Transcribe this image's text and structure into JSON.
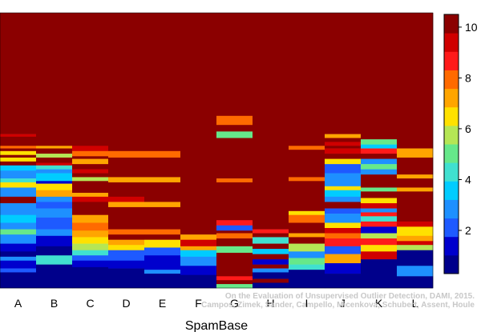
{
  "chart_data": {
    "type": "heatmap",
    "xlabel": "SpamBase",
    "categories": [
      "A",
      "B",
      "C",
      "D",
      "E",
      "F",
      "G",
      "H",
      "I",
      "J",
      "K",
      "L"
    ],
    "colorbar": {
      "min": 0.3,
      "max": 10.5,
      "ticks": [
        2,
        4,
        6,
        8,
        10
      ],
      "palette": [
        "#00008B",
        "#0000CD",
        "#1E5AFF",
        "#1E90FF",
        "#00CCFF",
        "#40E0D0",
        "#66E88A",
        "#B5E655",
        "#FFE100",
        "#FFA500",
        "#FF6A00",
        "#FF1A1A",
        "#D00000",
        "#8B0000"
      ]
    },
    "columns": [
      [
        [
          0,
          9.3,
          10.5
        ],
        [
          9.3,
          9.5,
          9.2
        ],
        [
          9.5,
          10.2,
          10.5
        ],
        [
          10.2,
          10.4,
          8
        ],
        [
          10.4,
          10.6,
          10.5
        ],
        [
          10.6,
          10.9,
          6.3
        ],
        [
          10.9,
          11.1,
          10.5
        ],
        [
          11.1,
          11.4,
          6.7
        ],
        [
          11.4,
          11.7,
          10.5
        ],
        [
          11.7,
          12.1,
          3.7
        ],
        [
          12.1,
          12.7,
          2.5
        ],
        [
          12.7,
          13.0,
          4.5
        ],
        [
          13.0,
          13.4,
          6.8
        ],
        [
          13.4,
          14.1,
          2.5
        ],
        [
          14.1,
          14.6,
          10.5
        ],
        [
          14.6,
          15.5,
          2.6
        ],
        [
          15.5,
          16.1,
          3.3
        ],
        [
          16.1,
          16.6,
          2.6
        ],
        [
          16.6,
          17.0,
          5
        ],
        [
          17.0,
          17.7,
          3.2
        ],
        [
          17.7,
          18.3,
          1.4
        ],
        [
          18.3,
          18.7,
          0.9
        ],
        [
          18.7,
          19.0,
          2.7
        ],
        [
          19.0,
          19.6,
          1.3
        ],
        [
          19.6,
          19.9,
          2.3
        ],
        [
          19.9,
          21.1,
          0.7
        ]
      ],
      [
        [
          0,
          10.2,
          10.5
        ],
        [
          10.2,
          10.4,
          7
        ],
        [
          10.4,
          10.8,
          10.5
        ],
        [
          10.8,
          11.1,
          6.1
        ],
        [
          11.1,
          11.5,
          10.5
        ],
        [
          11.5,
          11.7,
          9.3
        ],
        [
          11.7,
          12.0,
          4
        ],
        [
          12.0,
          12.3,
          3.2
        ],
        [
          12.3,
          12.9,
          3.5
        ],
        [
          12.9,
          13.1,
          1.7
        ],
        [
          13.1,
          13.6,
          6.5
        ],
        [
          13.6,
          14.1,
          7
        ],
        [
          14.1,
          14.5,
          3
        ],
        [
          14.5,
          15.0,
          2.4
        ],
        [
          15.0,
          15.7,
          3.1
        ],
        [
          15.7,
          16.6,
          2.2
        ],
        [
          16.6,
          17.1,
          3
        ],
        [
          17.1,
          17.9,
          1.2
        ],
        [
          17.9,
          18.6,
          0.8
        ],
        [
          18.6,
          19.3,
          4.6
        ],
        [
          19.3,
          20.1,
          0.6
        ],
        [
          20.1,
          21.1,
          0.6
        ]
      ],
      [
        [
          0,
          10.2,
          10.5
        ],
        [
          10.2,
          10.6,
          9.4
        ],
        [
          10.6,
          11.0,
          8.1
        ],
        [
          11.0,
          11.2,
          10.5
        ],
        [
          11.2,
          11.6,
          7.5
        ],
        [
          11.6,
          12.0,
          10.5
        ],
        [
          12.0,
          12.3,
          9.4
        ],
        [
          12.3,
          12.6,
          10.5
        ],
        [
          12.6,
          12.9,
          6
        ],
        [
          12.9,
          13.8,
          10.5
        ],
        [
          13.8,
          14.1,
          6.9
        ],
        [
          14.1,
          14.5,
          9.4
        ],
        [
          14.5,
          15.5,
          10.5
        ],
        [
          15.5,
          16.1,
          7.1
        ],
        [
          16.1,
          16.7,
          8.2
        ],
        [
          16.7,
          17.2,
          7.5
        ],
        [
          17.2,
          17.7,
          6.5
        ],
        [
          17.7,
          18.2,
          5.5
        ],
        [
          18.2,
          18.6,
          4.3
        ],
        [
          18.6,
          19.0,
          2.4
        ],
        [
          19.0,
          19.5,
          1.3
        ],
        [
          19.5,
          21.1,
          0.6
        ]
      ],
      [
        [
          0,
          10.6,
          10.5
        ],
        [
          10.6,
          11.1,
          8.2
        ],
        [
          11.1,
          12.6,
          10.5
        ],
        [
          12.6,
          13.0,
          7
        ],
        [
          13.0,
          14.1,
          10.5
        ],
        [
          14.1,
          14.5,
          9.3
        ],
        [
          14.5,
          14.9,
          7.2
        ],
        [
          14.9,
          16.6,
          10.5
        ],
        [
          16.6,
          17.0,
          8
        ],
        [
          17.0,
          17.4,
          10.5
        ],
        [
          17.4,
          17.8,
          7
        ],
        [
          17.8,
          18.2,
          6.2
        ],
        [
          18.2,
          19.0,
          2
        ],
        [
          19.0,
          19.6,
          1.3
        ],
        [
          19.6,
          21.1,
          0.6
        ]
      ],
      [
        [
          0,
          10.6,
          10.5
        ],
        [
          10.6,
          11.1,
          8.2
        ],
        [
          11.1,
          12.6,
          10.5
        ],
        [
          12.6,
          13.0,
          7
        ],
        [
          13.0,
          14.5,
          10.5
        ],
        [
          14.5,
          14.9,
          7.2
        ],
        [
          14.9,
          16.6,
          10.5
        ],
        [
          16.6,
          17.0,
          8
        ],
        [
          17.0,
          17.4,
          10.5
        ],
        [
          17.4,
          18.0,
          6.2
        ],
        [
          18.0,
          18.6,
          2.1
        ],
        [
          18.6,
          19.0,
          1.3
        ],
        [
          19.0,
          19.7,
          1.6
        ],
        [
          19.7,
          20.0,
          2.5
        ],
        [
          20.0,
          21.1,
          0.6
        ]
      ],
      [
        [
          0,
          17.0,
          10.5
        ],
        [
          17.0,
          17.4,
          7.2
        ],
        [
          17.4,
          17.9,
          9.3
        ],
        [
          17.9,
          18.2,
          7.1
        ],
        [
          18.2,
          18.7,
          3.5
        ],
        [
          18.7,
          19.4,
          2.6
        ],
        [
          19.4,
          20.1,
          1.4
        ],
        [
          20.1,
          21.1,
          0.6
        ]
      ],
      [
        [
          0,
          7.9,
          10.5
        ],
        [
          7.9,
          8.6,
          8.3
        ],
        [
          8.6,
          9.1,
          10.5
        ],
        [
          9.1,
          9.6,
          5
        ],
        [
          9.6,
          12.7,
          10.5
        ],
        [
          12.7,
          13.0,
          8.3
        ],
        [
          13.0,
          15.9,
          10.5
        ],
        [
          15.9,
          16.3,
          8.6
        ],
        [
          16.3,
          16.7,
          1.8
        ],
        [
          16.7,
          16.9,
          10.5
        ],
        [
          16.9,
          17.3,
          7.9
        ],
        [
          17.3,
          17.9,
          10.5
        ],
        [
          17.9,
          18.4,
          4.8
        ],
        [
          18.4,
          20.2,
          10.5
        ],
        [
          20.2,
          20.5,
          8.5
        ],
        [
          20.5,
          20.8,
          10.5
        ],
        [
          20.8,
          21.1,
          4.8
        ]
      ],
      [
        [
          0,
          16.6,
          10.5
        ],
        [
          16.6,
          16.9,
          8.6
        ],
        [
          16.9,
          17.2,
          10.5
        ],
        [
          17.2,
          17.7,
          4.4
        ],
        [
          17.7,
          18.1,
          10.5
        ],
        [
          18.1,
          18.5,
          3.3
        ],
        [
          18.5,
          18.9,
          10.5
        ],
        [
          18.9,
          19.3,
          1.1
        ],
        [
          19.3,
          19.6,
          10.5
        ],
        [
          19.6,
          19.9,
          2.6
        ],
        [
          19.9,
          20.4,
          0.6
        ],
        [
          20.4,
          20.7,
          10.5
        ],
        [
          20.7,
          21.1,
          0.6
        ]
      ],
      [
        [
          0,
          10.2,
          10.5
        ],
        [
          10.2,
          10.5,
          8.3
        ],
        [
          10.5,
          12.6,
          10.5
        ],
        [
          12.6,
          12.9,
          8.2
        ],
        [
          12.9,
          15.2,
          10.5
        ],
        [
          15.2,
          15.5,
          6.6
        ],
        [
          15.5,
          16.1,
          8
        ],
        [
          16.1,
          16.9,
          10.5
        ],
        [
          16.9,
          17.2,
          7.5
        ],
        [
          17.2,
          17.7,
          10.5
        ],
        [
          17.7,
          18.3,
          5.6
        ],
        [
          18.3,
          18.8,
          3.2
        ],
        [
          18.8,
          19.3,
          4.9
        ],
        [
          19.3,
          19.7,
          4.2
        ],
        [
          19.7,
          21.1,
          0.7
        ]
      ],
      [
        [
          0,
          9.3,
          10.5
        ],
        [
          9.3,
          9.6,
          7
        ],
        [
          9.6,
          9.9,
          10.5
        ],
        [
          9.9,
          10.2,
          9.3
        ],
        [
          10.2,
          10.4,
          10.5
        ],
        [
          10.4,
          10.8,
          9.2
        ],
        [
          10.8,
          11.2,
          10.5
        ],
        [
          11.2,
          11.6,
          6.6
        ],
        [
          11.6,
          12.3,
          1.8
        ],
        [
          12.3,
          13.0,
          3
        ],
        [
          13.0,
          13.3,
          2.5
        ],
        [
          13.3,
          13.6,
          6.5
        ],
        [
          13.6,
          14.1,
          3.5
        ],
        [
          14.1,
          14.5,
          2.7
        ],
        [
          14.5,
          15.0,
          9.8
        ],
        [
          15.0,
          15.4,
          2.2
        ],
        [
          15.4,
          16.1,
          3.2
        ],
        [
          16.1,
          16.5,
          6.5
        ],
        [
          16.5,
          16.9,
          9.5
        ],
        [
          16.9,
          17.3,
          7.8
        ],
        [
          17.3,
          17.9,
          8.5
        ],
        [
          17.9,
          18.5,
          2.3
        ],
        [
          18.5,
          19.2,
          7.3
        ],
        [
          19.2,
          20.0,
          1.3
        ],
        [
          20.0,
          21.1,
          0.6
        ]
      ],
      [
        [
          0,
          9.7,
          10.5
        ],
        [
          9.7,
          10.1,
          4.8
        ],
        [
          10.1,
          10.4,
          3.7
        ],
        [
          10.4,
          10.8,
          8.6
        ],
        [
          10.8,
          11.2,
          10.5
        ],
        [
          11.2,
          11.6,
          3.2
        ],
        [
          11.6,
          12.0,
          4.9
        ],
        [
          12.0,
          12.4,
          3.1
        ],
        [
          12.4,
          13.4,
          10.5
        ],
        [
          13.4,
          13.7,
          4.9
        ],
        [
          13.7,
          14.2,
          10.5
        ],
        [
          14.2,
          14.6,
          6.5
        ],
        [
          14.6,
          15.0,
          9.2
        ],
        [
          15.0,
          15.3,
          3.2
        ],
        [
          15.3,
          15.6,
          8.6
        ],
        [
          15.6,
          16.0,
          4
        ],
        [
          16.0,
          16.4,
          8.8
        ],
        [
          16.4,
          16.9,
          1.7
        ],
        [
          16.9,
          17.3,
          5.6
        ],
        [
          17.3,
          17.8,
          8.6
        ],
        [
          17.8,
          18.3,
          6.3
        ],
        [
          18.3,
          18.9,
          9.3
        ],
        [
          18.9,
          21.1,
          0.6
        ]
      ],
      [
        [
          0,
          10.4,
          10.5
        ],
        [
          10.4,
          11.1,
          7.5
        ],
        [
          11.1,
          12.4,
          10.5
        ],
        [
          12.4,
          12.7,
          7
        ],
        [
          12.7,
          13.4,
          10.5
        ],
        [
          13.4,
          13.7,
          7
        ],
        [
          13.7,
          16.0,
          10.5
        ],
        [
          16.0,
          16.4,
          9.5
        ],
        [
          16.4,
          17.1,
          6.2
        ],
        [
          17.1,
          17.5,
          7.3
        ],
        [
          17.5,
          17.8,
          9.4
        ],
        [
          17.8,
          18.2,
          6
        ],
        [
          18.2,
          19.4,
          0.9
        ],
        [
          19.4,
          20.2,
          2.8
        ],
        [
          20.2,
          21.1,
          0.8
        ]
      ]
    ]
  },
  "credit": {
    "line1": "On the Evaluation of Unsupervised Outlier Detection, DAMI, 2015.",
    "line2": "Campos, Zimek, Sander, Campello, Micenková, Schubert, Assent, Houle"
  }
}
